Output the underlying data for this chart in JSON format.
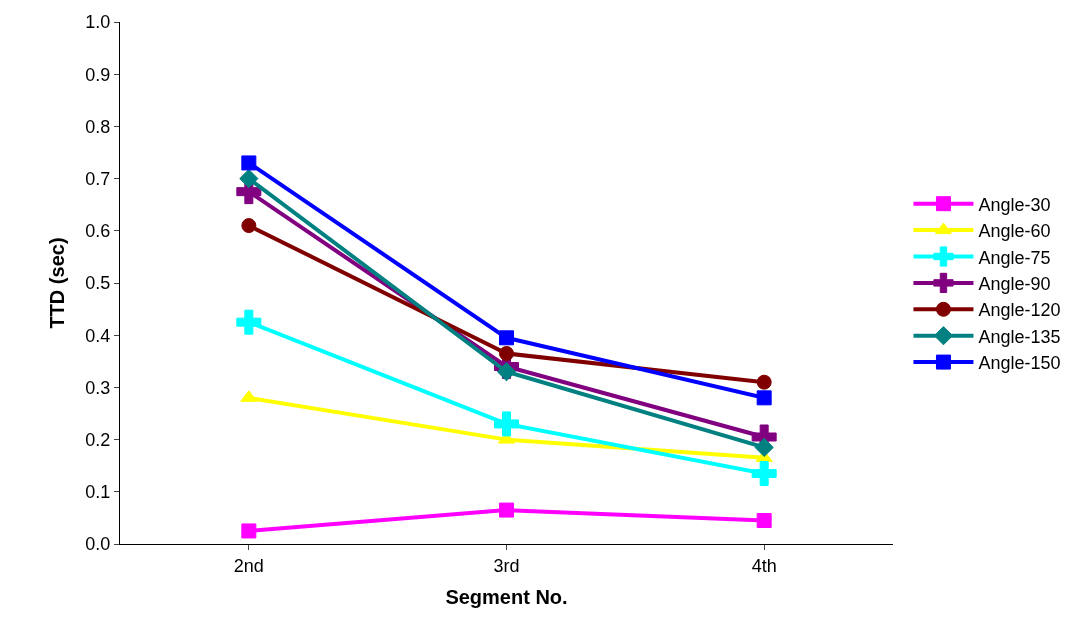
{
  "chart_data": {
    "type": "line",
    "xlabel": "Segment No.",
    "ylabel": "TTD (sec)",
    "categories": [
      "2nd",
      "3rd",
      "4th"
    ],
    "series": [
      {
        "name": "Angle-30",
        "color": "#ff00ff",
        "marker": "square",
        "values": [
          0.025,
          0.065,
          0.045
        ]
      },
      {
        "name": "Angle-60",
        "color": "#ffff00",
        "marker": "triangle",
        "values": [
          0.28,
          0.2,
          0.165
        ]
      },
      {
        "name": "Angle-75",
        "color": "#00ffff",
        "marker": "cross",
        "values": [
          0.425,
          0.23,
          0.135
        ]
      },
      {
        "name": "Angle-90",
        "color": "#800080",
        "marker": "cross",
        "values": [
          0.675,
          0.34,
          0.205
        ]
      },
      {
        "name": "Angle-120",
        "color": "#800000",
        "marker": "circle",
        "values": [
          0.61,
          0.365,
          0.31
        ]
      },
      {
        "name": "Angle-135",
        "color": "#008080",
        "marker": "diamond",
        "values": [
          0.7,
          0.33,
          0.185
        ]
      },
      {
        "name": "Angle-150",
        "color": "#0000ff",
        "marker": "square",
        "values": [
          0.73,
          0.395,
          0.28
        ]
      }
    ],
    "ylim": [
      0,
      1
    ],
    "yticks": [
      {
        "value": 0,
        "label": "0.0"
      },
      0.1,
      0.2,
      0.3,
      0.4,
      0.5,
      0.6,
      0.7,
      0.8,
      0.9,
      {
        "value": 1,
        "label": "1.0"
      }
    ],
    "grid": false,
    "legend": "right",
    "line_style": "solid"
  }
}
